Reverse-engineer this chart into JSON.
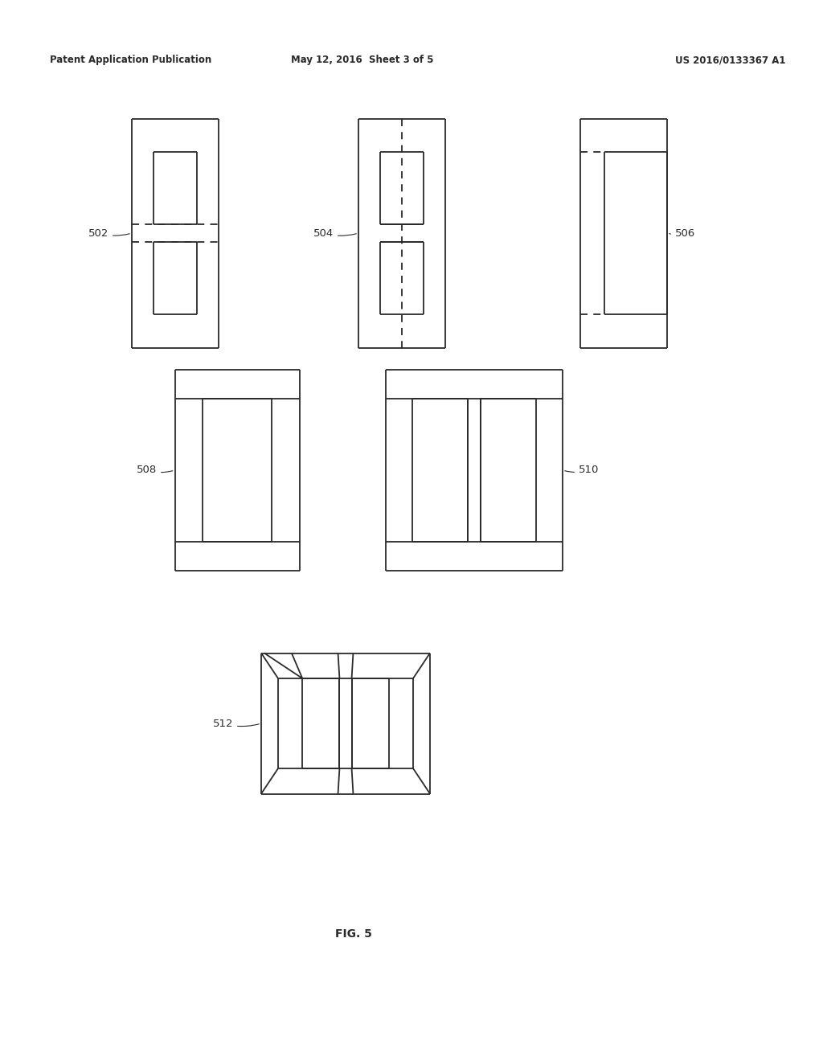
{
  "header_left": "Patent Application Publication",
  "header_mid": "May 12, 2016  Sheet 3 of 5",
  "header_right": "US 2016/0133367 A1",
  "fig_caption": "FIG. 5",
  "background_color": "#ffffff",
  "line_color": "#2a2a2a",
  "dashed_color": "#2a2a2a",
  "label_color": "#2a2a2a"
}
